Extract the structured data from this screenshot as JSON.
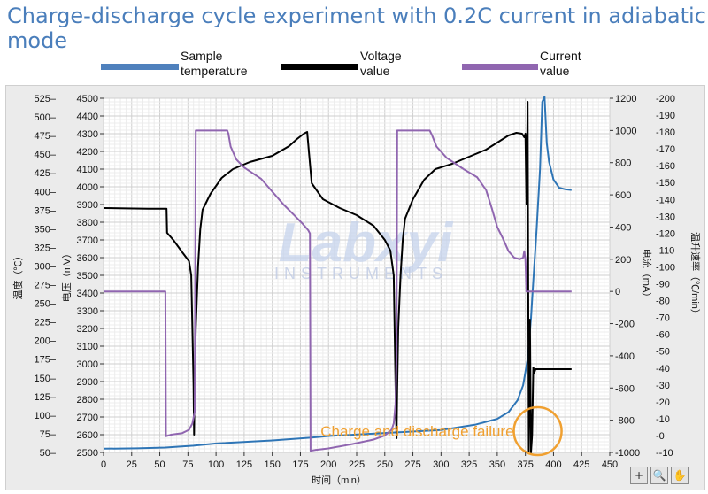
{
  "title": "Charge-discharge cycle experiment with 0.2C current in adiabatic mode",
  "legend": [
    {
      "label_line1": "Sample",
      "label_line2": "temperature",
      "color": "#4f81bd"
    },
    {
      "label_line1": "Voltage",
      "label_line2": "value",
      "color": "#000000"
    },
    {
      "label_line1": "Current",
      "label_line2": "value",
      "color": "#9066b0"
    }
  ],
  "toolbar": {
    "crosshair": "+",
    "zoom": "🔍",
    "pan": "✋"
  },
  "chart_data": {
    "type": "line",
    "grid": true,
    "watermark": {
      "brand": "Labxyi",
      "sub": "INSTRUMENTS"
    },
    "annotation": {
      "text": "Charge and discharge failure",
      "color": "#f0a030",
      "x": 382,
      "y_temp": 82
    },
    "x_axis": {
      "label": "时间（min）",
      "min": 0,
      "max": 450,
      "ticks": [
        0,
        25,
        50,
        75,
        100,
        125,
        150,
        175,
        200,
        225,
        250,
        275,
        300,
        325,
        350,
        375,
        400,
        425,
        450
      ]
    },
    "axes": {
      "temperature": {
        "label": "温度（℃）",
        "min": 50,
        "max": 525,
        "ticks": [
          50,
          75,
          100,
          125,
          150,
          175,
          200,
          225,
          250,
          275,
          300,
          325,
          350,
          375,
          400,
          425,
          450,
          475,
          500,
          525
        ]
      },
      "voltage": {
        "label": "电压（mV）",
        "min": 2500,
        "max": 4500,
        "ticks": [
          2500,
          2600,
          2700,
          2800,
          2900,
          3000,
          3100,
          3200,
          3300,
          3400,
          3500,
          3600,
          3700,
          3800,
          3900,
          4000,
          4100,
          4200,
          4300,
          4400,
          4500
        ]
      },
      "current": {
        "label": "电流（mA）",
        "min": -1000,
        "max": 1200,
        "ticks": [
          -1000,
          -800,
          -600,
          -400,
          -200,
          0,
          200,
          400,
          600,
          800,
          1000,
          1200
        ]
      },
      "temp_rate": {
        "label": "温升速率（℃/min）",
        "min": -10,
        "max": 200,
        "ticks": [
          -10,
          0,
          10,
          20,
          30,
          40,
          50,
          60,
          70,
          80,
          90,
          100,
          110,
          120,
          130,
          140,
          150,
          160,
          170,
          180,
          190,
          200
        ]
      }
    },
    "series": [
      {
        "name": "Sample temperature",
        "axis": "temperature",
        "color": "#2e75b6",
        "points": [
          [
            0,
            55
          ],
          [
            30,
            55.5
          ],
          [
            55,
            56.5
          ],
          [
            80,
            59
          ],
          [
            100,
            62
          ],
          [
            150,
            66
          ],
          [
            185,
            70
          ],
          [
            200,
            72
          ],
          [
            250,
            76
          ],
          [
            300,
            80
          ],
          [
            330,
            87
          ],
          [
            350,
            95
          ],
          [
            360,
            104
          ],
          [
            368,
            120
          ],
          [
            373,
            140
          ],
          [
            377,
            175
          ],
          [
            380,
            230
          ],
          [
            382,
            280
          ],
          [
            385,
            350
          ],
          [
            388,
            430
          ],
          [
            390,
            520
          ],
          [
            392,
            527
          ],
          [
            394,
            465
          ],
          [
            396,
            440
          ],
          [
            400,
            416
          ],
          [
            405,
            405
          ],
          [
            410,
            403
          ],
          [
            416,
            402
          ]
        ]
      },
      {
        "name": "Voltage value",
        "axis": "voltage",
        "color": "#000000",
        "points": [
          [
            0,
            3880
          ],
          [
            20,
            3878
          ],
          [
            40,
            3876
          ],
          [
            56,
            3876
          ],
          [
            56.5,
            3740
          ],
          [
            62,
            3700
          ],
          [
            70,
            3630
          ],
          [
            76,
            3580
          ],
          [
            78,
            3500
          ],
          [
            79,
            3200
          ],
          [
            80,
            2880
          ],
          [
            80.5,
            2600
          ],
          [
            81,
            2900
          ],
          [
            82,
            3200
          ],
          [
            84,
            3550
          ],
          [
            86,
            3760
          ],
          [
            88,
            3870
          ],
          [
            95,
            3960
          ],
          [
            105,
            4050
          ],
          [
            115,
            4100
          ],
          [
            130,
            4140
          ],
          [
            150,
            4175
          ],
          [
            165,
            4230
          ],
          [
            172,
            4270
          ],
          [
            178,
            4300
          ],
          [
            181,
            4310
          ],
          [
            182.5,
            4200
          ],
          [
            185,
            4020
          ],
          [
            195,
            3930
          ],
          [
            210,
            3880
          ],
          [
            225,
            3840
          ],
          [
            240,
            3780
          ],
          [
            250,
            3700
          ],
          [
            255,
            3640
          ],
          [
            258,
            3500
          ],
          [
            259,
            3100
          ],
          [
            260,
            2700
          ],
          [
            260.5,
            2580
          ],
          [
            261,
            2850
          ],
          [
            262,
            3200
          ],
          [
            264,
            3500
          ],
          [
            266,
            3700
          ],
          [
            268,
            3820
          ],
          [
            275,
            3930
          ],
          [
            285,
            4040
          ],
          [
            295,
            4100
          ],
          [
            310,
            4130
          ],
          [
            325,
            4170
          ],
          [
            340,
            4210
          ],
          [
            350,
            4250
          ],
          [
            360,
            4290
          ],
          [
            367,
            4305
          ],
          [
            372,
            4300
          ],
          [
            374,
            4280
          ],
          [
            375,
            4300
          ],
          [
            376,
            3900
          ],
          [
            377,
            4480
          ],
          [
            378,
            2500
          ],
          [
            379,
            3250
          ],
          [
            380,
            2500
          ],
          [
            381,
            2600
          ],
          [
            382,
            2980
          ],
          [
            383,
            2950
          ],
          [
            384,
            2970
          ],
          [
            392,
            2970
          ],
          [
            400,
            2970
          ],
          [
            416,
            2970
          ]
        ]
      },
      {
        "name": "Current value",
        "axis": "current",
        "color": "#9066b0",
        "points": [
          [
            0,
            0
          ],
          [
            55,
            0
          ],
          [
            55.5,
            -900
          ],
          [
            60,
            -890
          ],
          [
            70,
            -880
          ],
          [
            76,
            -860
          ],
          [
            79,
            -820
          ],
          [
            81,
            -750
          ],
          [
            82,
            1000
          ],
          [
            90,
            1000
          ],
          [
            110,
            1000
          ],
          [
            111,
            980
          ],
          [
            113,
            900
          ],
          [
            118,
            820
          ],
          [
            125,
            770
          ],
          [
            140,
            700
          ],
          [
            150,
            620
          ],
          [
            160,
            540
          ],
          [
            170,
            470
          ],
          [
            177,
            420
          ],
          [
            182,
            380
          ],
          [
            183.5,
            360
          ],
          [
            184,
            -990
          ],
          [
            188,
            -985
          ],
          [
            200,
            -975
          ],
          [
            220,
            -950
          ],
          [
            240,
            -920
          ],
          [
            250,
            -895
          ],
          [
            256,
            -860
          ],
          [
            258,
            -820
          ],
          [
            259.5,
            -700
          ],
          [
            260.5,
            -400
          ],
          [
            261,
            1000
          ],
          [
            270,
            1000
          ],
          [
            290,
            1000
          ],
          [
            292,
            970
          ],
          [
            296,
            900
          ],
          [
            305,
            830
          ],
          [
            320,
            760
          ],
          [
            332,
            710
          ],
          [
            340,
            630
          ],
          [
            345,
            520
          ],
          [
            350,
            400
          ],
          [
            355,
            330
          ],
          [
            360,
            250
          ],
          [
            365,
            210
          ],
          [
            370,
            200
          ],
          [
            373,
            210
          ],
          [
            374,
            250
          ],
          [
            375,
            200
          ],
          [
            376,
            0
          ],
          [
            390,
            0
          ],
          [
            416,
            0
          ]
        ]
      }
    ]
  }
}
